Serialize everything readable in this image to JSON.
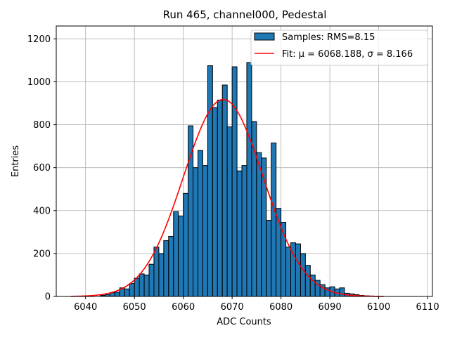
{
  "chart_data": {
    "type": "bar",
    "title": "Run 465, channel000, Pedestal",
    "xlabel": "ADC Counts",
    "ylabel": "Entries",
    "xlim": [
      6034,
      6111
    ],
    "ylim": [
      0,
      1260
    ],
    "xticks": [
      6040,
      6050,
      6060,
      6070,
      6080,
      6090,
      6100,
      6110
    ],
    "yticks": [
      0,
      200,
      400,
      600,
      800,
      1000,
      1200
    ],
    "grid": true,
    "legend_position": "top-right",
    "colors": {
      "bars": "#1f77b4",
      "bar_edge": "#000000",
      "fit": "#ff0000",
      "grid": "#b0b0b0"
    },
    "histogram": {
      "name": "Samples: RMS=8.15",
      "bin_start": 6037,
      "bin_width": 1,
      "counts": [
        0,
        0,
        0,
        0,
        0,
        0,
        5,
        8,
        18,
        20,
        40,
        35,
        60,
        85,
        105,
        100,
        150,
        230,
        200,
        260,
        280,
        395,
        375,
        480,
        795,
        600,
        680,
        610,
        1075,
        880,
        915,
        985,
        790,
        1070,
        585,
        610,
        1090,
        815,
        670,
        645,
        355,
        715,
        410,
        345,
        230,
        250,
        245,
        200,
        145,
        100,
        75,
        55,
        40,
        45,
        35,
        40,
        15,
        12,
        8,
        5,
        3,
        2,
        1,
        0,
        0,
        0,
        0,
        0,
        0,
        0,
        0
      ]
    },
    "fit": {
      "name": "Fit: μ = 6068.188, σ = 8.166",
      "mu": 6068.188,
      "sigma": 8.166,
      "amplitude": 918,
      "x_range": [
        6037,
        6101
      ]
    }
  }
}
